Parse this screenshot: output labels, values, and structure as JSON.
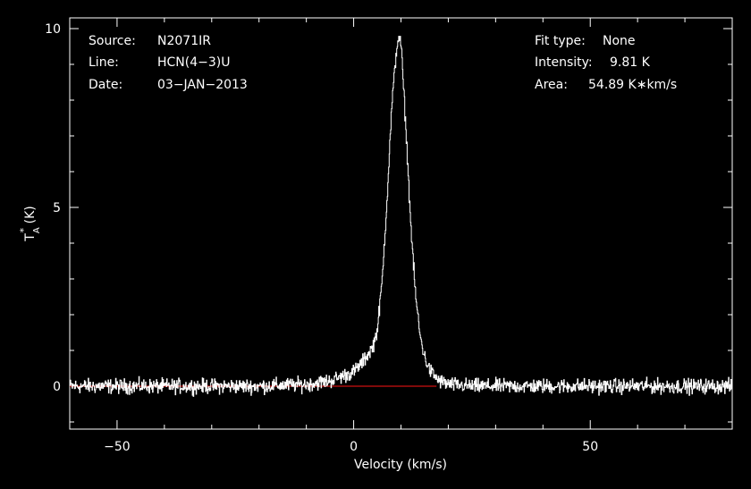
{
  "info_left": [
    {
      "label": "Source:",
      "value": "N2071IR"
    },
    {
      "label": "Line:",
      "value": "HCN(4−3)U"
    },
    {
      "label": "Date:",
      "value": "03−JAN−2013"
    }
  ],
  "info_right": [
    {
      "label": "Fit type:",
      "value": "None"
    },
    {
      "label": "Intensity:",
      "value": "9.81 K"
    },
    {
      "label": "Area:",
      "value": "54.89 K∗km/s"
    }
  ],
  "colors": {
    "background": "#000000",
    "spectrum": "#ffffff",
    "baseline": "#cc1111",
    "frame": "#ffffff"
  },
  "chart_data": {
    "type": "line",
    "title": "",
    "xlabel": "Velocity (km/s)",
    "ylabel": {
      "base": "T",
      "sup": "*",
      "sub": "A",
      "unit": " (K)"
    },
    "xlim": [
      -60,
      80
    ],
    "ylim": [
      -1.2,
      10.3
    ],
    "xticks": [
      -50,
      0,
      50
    ],
    "xtick_labels": [
      "−50",
      "0",
      "50"
    ],
    "yticks": [
      0,
      5,
      10
    ],
    "ytick_labels": [
      "0",
      "5",
      "10"
    ],
    "grid": false,
    "baseline": {
      "x": [
        -60,
        17.5
      ],
      "y": 0
    },
    "series": [
      {
        "x": [
          -60,
          -40,
          -20,
          -10,
          -5,
          -2,
          0,
          2,
          4,
          5,
          6,
          7,
          8,
          9,
          9.5,
          10,
          11,
          12,
          13,
          14,
          15,
          16,
          17,
          18,
          20,
          25,
          40,
          60,
          80
        ],
        "values": [
          0,
          0,
          0,
          0.05,
          0.15,
          0.3,
          0.4,
          0.7,
          1.1,
          1.6,
          3.0,
          5.2,
          7.8,
          9.4,
          9.81,
          9.5,
          7.2,
          4.6,
          2.6,
          1.4,
          0.8,
          0.45,
          0.3,
          0.15,
          0.05,
          0,
          0,
          0,
          0
        ]
      }
    ]
  }
}
